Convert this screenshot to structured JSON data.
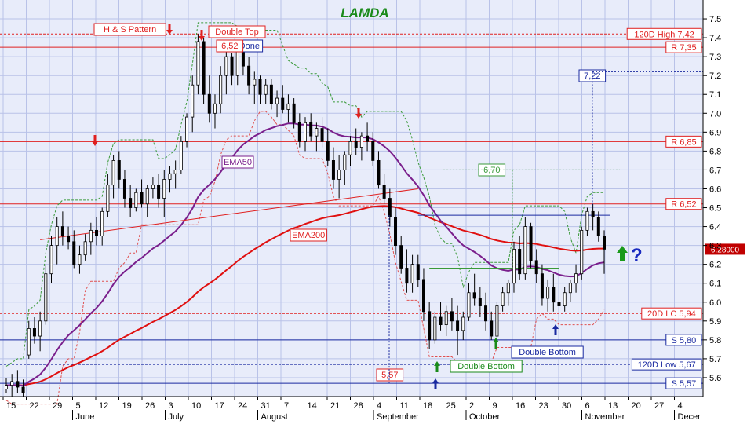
{
  "chart_data": {
    "type": "candlestick",
    "title": "LAMDA",
    "colors": {
      "background": "#e8ecfa",
      "grid": "#b9c2e8",
      "title": "#1a8a1a",
      "resistance": "#e02020",
      "support": "#1a2aa0",
      "ema50": "#7a1f8c",
      "ema200": "#e01010",
      "trailing_stop_up": "#3a9a3a",
      "trailing_stop_down": "#e05050",
      "candle_up": "#ffffff",
      "candle_down": "#000000",
      "current_price_bg": "#c00000"
    },
    "y_axis": {
      "min": 5.5,
      "max": 7.6,
      "step": 0.1,
      "ticks": [
        "5.6",
        "5.7",
        "5.8",
        "5.9",
        "6.0",
        "6.1",
        "6.2",
        "6.3",
        "6.4",
        "6.5",
        "6.6",
        "6.7",
        "6.8",
        "6.9",
        "7.0",
        "7.1",
        "7.2",
        "7.3",
        "7.4",
        "7.5"
      ]
    },
    "x_axis": {
      "day_ticks": [
        "15",
        "22",
        "29",
        "5",
        "12",
        "19",
        "26",
        "3",
        "10",
        "17",
        "24",
        "31",
        "7",
        "14",
        "21",
        "28",
        "4",
        "11",
        "18",
        "25",
        "2",
        "9",
        "16",
        "23",
        "30",
        "6",
        "13",
        "20",
        "27",
        "4"
      ],
      "month_labels": [
        "June",
        "July",
        "August",
        "September",
        "October",
        "November",
        "Decer"
      ]
    },
    "horizontal_lines": [
      {
        "label": "120D High 7,42",
        "value": 7.42,
        "style": "dashed",
        "kind": "resistance"
      },
      {
        "label": "R 7,35",
        "value": 7.35,
        "style": "solid",
        "kind": "resistance"
      },
      {
        "label": "R 6,85",
        "value": 6.85,
        "style": "solid",
        "kind": "resistance"
      },
      {
        "label": "R 6,52",
        "value": 6.52,
        "style": "solid",
        "kind": "resistance"
      },
      {
        "label": "20D LC 5,94",
        "value": 5.94,
        "style": "dashed",
        "kind": "resistance"
      },
      {
        "label": "S 5,80",
        "value": 5.8,
        "style": "solid",
        "kind": "support"
      },
      {
        "label": "120D Low 5,67",
        "value": 5.67,
        "style": "dashed",
        "kind": "support"
      },
      {
        "label": "S 5,57",
        "value": 5.57,
        "style": "solid",
        "kind": "support"
      }
    ],
    "current_price": "6.28000",
    "price_labels": [
      "6,52",
      "7,22",
      "6,70",
      "5,57"
    ],
    "annotations": {
      "hs_pattern": "H & S Pattern",
      "double_top": "Double Top",
      "done": "Done",
      "ema50": "EMA50",
      "ema200": "EMA200",
      "double_bottom_1": "Double Bottom",
      "double_bottom_2": "Double Bottom",
      "question": "?"
    },
    "candles": [
      [
        5.54,
        5.6,
        5.52,
        5.56
      ],
      [
        5.56,
        5.62,
        5.5,
        5.58
      ],
      [
        5.58,
        5.64,
        5.52,
        5.55
      ],
      [
        5.55,
        5.59,
        5.5,
        5.52
      ],
      [
        5.72,
        5.9,
        5.7,
        5.86
      ],
      [
        5.86,
        5.92,
        5.78,
        5.82
      ],
      [
        5.82,
        5.95,
        5.74,
        5.9
      ],
      [
        5.9,
        6.2,
        5.88,
        6.15
      ],
      [
        6.15,
        6.35,
        6.1,
        6.3
      ],
      [
        6.3,
        6.45,
        6.2,
        6.4
      ],
      [
        6.4,
        6.48,
        6.3,
        6.35
      ],
      [
        6.35,
        6.4,
        6.28,
        6.32
      ],
      [
        6.32,
        6.38,
        6.18,
        6.2
      ],
      [
        6.2,
        6.3,
        6.15,
        6.25
      ],
      [
        6.25,
        6.36,
        6.22,
        6.32
      ],
      [
        6.32,
        6.42,
        6.25,
        6.38
      ],
      [
        6.38,
        6.45,
        6.3,
        6.35
      ],
      [
        6.35,
        6.5,
        6.3,
        6.48
      ],
      [
        6.48,
        6.68,
        6.45,
        6.62
      ],
      [
        6.62,
        6.78,
        6.55,
        6.75
      ],
      [
        6.75,
        6.8,
        6.6,
        6.65
      ],
      [
        6.65,
        6.7,
        6.5,
        6.55
      ],
      [
        6.55,
        6.62,
        6.45,
        6.5
      ],
      [
        6.5,
        6.6,
        6.48,
        6.58
      ],
      [
        6.58,
        6.65,
        6.5,
        6.52
      ],
      [
        6.52,
        6.62,
        6.45,
        6.6
      ],
      [
        6.6,
        6.66,
        6.55,
        6.62
      ],
      [
        6.62,
        6.68,
        6.5,
        6.55
      ],
      [
        6.55,
        6.7,
        6.45,
        6.65
      ],
      [
        6.65,
        6.72,
        6.58,
        6.68
      ],
      [
        6.68,
        6.75,
        6.6,
        6.7
      ],
      [
        6.7,
        6.88,
        6.68,
        6.85
      ],
      [
        6.85,
        7.0,
        6.82,
        6.98
      ],
      [
        6.98,
        7.2,
        6.9,
        7.15
      ],
      [
        7.15,
        7.42,
        7.1,
        7.38
      ],
      [
        7.38,
        7.4,
        7.05,
        7.1
      ],
      [
        7.1,
        7.2,
        6.95,
        7.0
      ],
      [
        7.0,
        7.1,
        6.92,
        7.05
      ],
      [
        7.05,
        7.25,
        7.0,
        7.2
      ],
      [
        7.2,
        7.35,
        7.1,
        7.3
      ],
      [
        7.3,
        7.32,
        7.15,
        7.2
      ],
      [
        7.2,
        7.38,
        7.15,
        7.35
      ],
      [
        7.35,
        7.38,
        7.2,
        7.25
      ],
      [
        7.25,
        7.3,
        7.1,
        7.15
      ],
      [
        7.15,
        7.22,
        7.05,
        7.18
      ],
      [
        7.18,
        7.2,
        7.05,
        7.1
      ],
      [
        7.1,
        7.18,
        7.05,
        7.15
      ],
      [
        7.15,
        7.18,
        7.02,
        7.05
      ],
      [
        7.05,
        7.12,
        6.98,
        7.08
      ],
      [
        7.08,
        7.15,
        7.0,
        7.02
      ],
      [
        7.02,
        7.1,
        6.95,
        7.05
      ],
      [
        7.05,
        7.08,
        6.92,
        6.95
      ],
      [
        6.95,
        7.0,
        6.82,
        6.85
      ],
      [
        6.85,
        6.98,
        6.8,
        6.95
      ],
      [
        6.95,
        7.0,
        6.85,
        6.88
      ],
      [
        6.88,
        6.95,
        6.8,
        6.92
      ],
      [
        6.92,
        6.98,
        6.82,
        6.85
      ],
      [
        6.85,
        6.92,
        6.72,
        6.75
      ],
      [
        6.75,
        6.82,
        6.6,
        6.65
      ],
      [
        6.65,
        6.78,
        6.55,
        6.7
      ],
      [
        6.7,
        6.8,
        6.62,
        6.78
      ],
      [
        6.78,
        6.88,
        6.72,
        6.85
      ],
      [
        6.85,
        6.92,
        6.78,
        6.82
      ],
      [
        6.82,
        6.9,
        6.75,
        6.88
      ],
      [
        6.88,
        6.95,
        6.8,
        6.85
      ],
      [
        6.85,
        6.9,
        6.72,
        6.75
      ],
      [
        6.75,
        6.8,
        6.6,
        6.62
      ],
      [
        6.62,
        6.68,
        6.52,
        6.55
      ],
      [
        6.55,
        6.6,
        6.4,
        6.45
      ],
      [
        6.45,
        6.5,
        6.25,
        6.3
      ],
      [
        6.3,
        6.35,
        6.15,
        6.18
      ],
      [
        6.18,
        6.28,
        6.05,
        6.1
      ],
      [
        6.1,
        6.25,
        6.05,
        6.2
      ],
      [
        6.2,
        6.25,
        6.08,
        6.12
      ],
      [
        6.12,
        6.18,
        5.9,
        5.95
      ],
      [
        5.95,
        6.0,
        5.75,
        5.8
      ],
      [
        5.8,
        5.95,
        5.78,
        5.92
      ],
      [
        5.92,
        6.0,
        5.85,
        5.88
      ],
      [
        5.88,
        5.98,
        5.82,
        5.95
      ],
      [
        5.95,
        6.02,
        5.85,
        5.9
      ],
      [
        5.9,
        5.98,
        5.72,
        5.85
      ],
      [
        5.85,
        5.95,
        5.8,
        5.92
      ],
      [
        5.92,
        6.1,
        5.9,
        6.05
      ],
      [
        6.05,
        6.15,
        5.98,
        6.02
      ],
      [
        6.02,
        6.08,
        5.92,
        5.98
      ],
      [
        5.98,
        6.05,
        5.85,
        5.9
      ],
      [
        5.9,
        5.95,
        5.8,
        5.82
      ],
      [
        5.82,
        6.0,
        5.8,
        5.98
      ],
      [
        5.98,
        6.08,
        5.95,
        6.05
      ],
      [
        6.05,
        6.12,
        5.98,
        6.1
      ],
      [
        6.1,
        6.32,
        6.05,
        6.28
      ],
      [
        6.28,
        6.35,
        6.12,
        6.15
      ],
      [
        6.15,
        6.45,
        6.12,
        6.4
      ],
      [
        6.4,
        6.42,
        6.18,
        6.22
      ],
      [
        6.22,
        6.28,
        6.1,
        6.15
      ],
      [
        6.15,
        6.2,
        5.98,
        6.02
      ],
      [
        6.02,
        6.12,
        5.95,
        6.08
      ],
      [
        6.08,
        6.15,
        5.95,
        6.0
      ],
      [
        6.0,
        6.05,
        5.92,
        5.98
      ],
      [
        5.98,
        6.08,
        5.95,
        6.05
      ],
      [
        6.05,
        6.12,
        6.0,
        6.1
      ],
      [
        6.1,
        6.2,
        6.05,
        6.15
      ],
      [
        6.15,
        6.4,
        6.12,
        6.38
      ],
      [
        6.38,
        6.5,
        6.35,
        6.48
      ],
      [
        6.48,
        6.52,
        6.38,
        6.45
      ],
      [
        6.45,
        6.48,
        6.32,
        6.35
      ],
      [
        6.35,
        6.38,
        6.15,
        6.28
      ]
    ]
  }
}
